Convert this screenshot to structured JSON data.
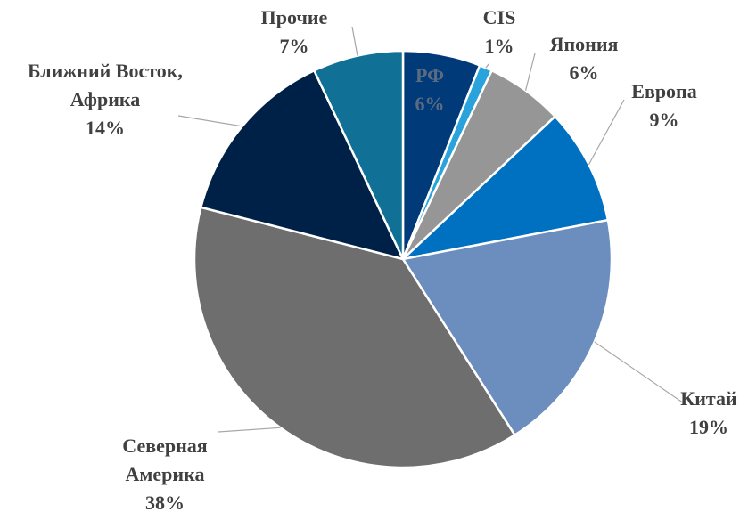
{
  "chart_data": {
    "type": "pie",
    "categories": [
      "РФ",
      "CIS",
      "Япония",
      "Европа",
      "Китай",
      "Северная\nАмерика",
      "Ближний Восток,\nАфрика",
      "Прочие"
    ],
    "values": [
      6,
      1,
      6,
      9,
      19,
      38,
      14,
      7
    ],
    "value_labels": [
      "6%",
      "1%",
      "6%",
      "9%",
      "19%",
      "38%",
      "14%",
      "7%"
    ],
    "colors": [
      "#003a78",
      "#2aa3dc",
      "#969696",
      "#0070c0",
      "#6c8ebf",
      "#6e6e6e",
      "#002147",
      "#117096"
    ]
  }
}
